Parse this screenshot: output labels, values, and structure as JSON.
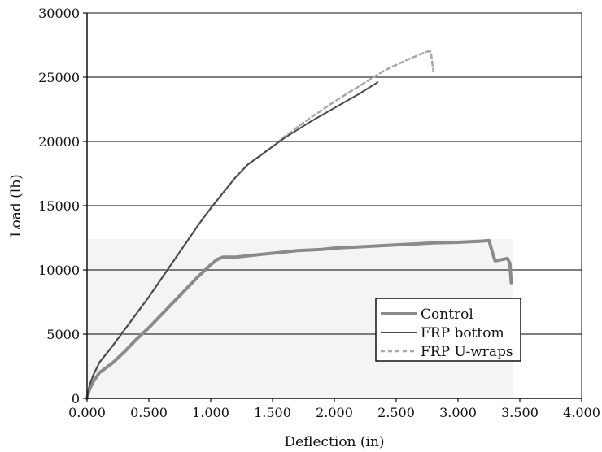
{
  "chart_data": {
    "type": "line",
    "title": "",
    "xlabel": "Deflection (in)",
    "ylabel": "Load (lb)",
    "xlim": [
      0,
      4
    ],
    "ylim": [
      0,
      30000
    ],
    "x_ticks": [
      "0.000",
      "0.500",
      "1.000",
      "1.500",
      "2.000",
      "2.500",
      "3.000",
      "3.500",
      "4.000"
    ],
    "y_ticks": [
      "0",
      "5000",
      "10000",
      "15000",
      "20000",
      "25000",
      "30000"
    ],
    "grid": "horizontal",
    "legend_position": "bottom-right",
    "colors": {
      "control": "#8a8a8a",
      "frp_bottom": "#4a4a4a",
      "frp_uwraps": "#a8a8a8",
      "gridline": "#333333",
      "shade": "#f4f4f4"
    },
    "series": [
      {
        "name": "Control",
        "x": [
          0,
          0.02,
          0.05,
          0.1,
          0.2,
          0.3,
          0.4,
          0.5,
          0.6,
          0.7,
          0.8,
          0.9,
          1.0,
          1.05,
          1.1,
          1.2,
          1.3,
          1.4,
          1.5,
          1.6,
          1.7,
          1.8,
          1.9,
          2.0,
          2.2,
          2.4,
          2.6,
          2.8,
          3.0,
          3.1,
          3.2,
          3.25,
          3.28,
          3.3,
          3.35,
          3.4,
          3.42,
          3.43
        ],
        "y": [
          0,
          700,
          1300,
          2000,
          2700,
          3600,
          4600,
          5500,
          6500,
          7500,
          8500,
          9500,
          10400,
          10800,
          11000,
          11000,
          11100,
          11200,
          11300,
          11400,
          11500,
          11550,
          11600,
          11700,
          11800,
          11900,
          12000,
          12100,
          12150,
          12200,
          12250,
          12300,
          11300,
          10700,
          10800,
          10900,
          10500,
          9000
        ]
      },
      {
        "name": "FRP bottom",
        "x": [
          0,
          0.02,
          0.05,
          0.1,
          0.2,
          0.3,
          0.4,
          0.5,
          0.6,
          0.7,
          0.8,
          0.9,
          1.0,
          1.1,
          1.2,
          1.3,
          1.4,
          1.5,
          1.6,
          1.8,
          2.0,
          2.2,
          2.35
        ],
        "y": [
          0,
          1000,
          1800,
          2800,
          4000,
          5300,
          6600,
          7900,
          9300,
          10700,
          12100,
          13500,
          14800,
          16000,
          17200,
          18200,
          18900,
          19600,
          20300,
          21500,
          22600,
          23700,
          24600
        ]
      },
      {
        "name": "FRP U-wraps",
        "x": [
          0,
          0.02,
          0.05,
          0.1,
          0.2,
          0.3,
          0.4,
          0.5,
          0.6,
          0.7,
          0.8,
          0.9,
          1.0,
          1.1,
          1.2,
          1.3,
          1.4,
          1.5,
          1.6,
          1.8,
          2.0,
          2.2,
          2.4,
          2.6,
          2.75,
          2.78,
          2.8
        ],
        "y": [
          0,
          1000,
          1800,
          2800,
          4000,
          5300,
          6600,
          7900,
          9300,
          10700,
          12100,
          13500,
          14800,
          16000,
          17200,
          18200,
          18900,
          19600,
          20400,
          21800,
          23100,
          24300,
          25500,
          26400,
          27000,
          27000,
          25500
        ]
      }
    ]
  }
}
